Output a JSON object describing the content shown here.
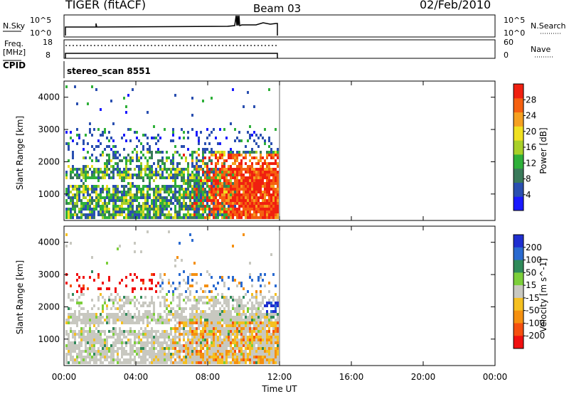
{
  "header": {
    "station": "TIGER (fitACF)",
    "beam": "Beam 03",
    "date": "02/Feb/2010"
  },
  "top_panels": {
    "nsky_label": "N.Sky",
    "nsky_ticks": [
      "10^5",
      "10^0"
    ],
    "nsearch_label": "N.Search",
    "nsearch_ticks": [
      "10^5",
      "10^0"
    ],
    "freq_label": "Freq.",
    "freq_unit": "[MHz]",
    "freq_ticks": [
      "18",
      "8"
    ],
    "nave_label": "Nave",
    "nave_ticks": [
      "60",
      "0"
    ],
    "cpid_label": "CPID",
    "cpid_value": "stereo_scan 8551"
  },
  "chart_data": [
    {
      "type": "heatmap",
      "name": "power-panel",
      "ylabel": "Slant Range [km]",
      "xlabel": "",
      "y_ticks": [
        "1000",
        "2000",
        "3000",
        "4000"
      ],
      "ylim": [
        180,
        4500
      ],
      "xlim": [
        "00:00",
        "24:00"
      ],
      "data_extent_hours": [
        0,
        12
      ],
      "colorbar": {
        "label": "Power [dB]",
        "ticks": [
          "4",
          "8",
          "12",
          "16",
          "20",
          "24",
          "28"
        ],
        "range": [
          0,
          32
        ],
        "colors": [
          "#1a1aff",
          "#2a4fb0",
          "#3a7a5a",
          "#2fb03a",
          "#a8d028",
          "#f0e020",
          "#f5a020",
          "#f56010",
          "#f02010"
        ]
      },
      "features": [
        {
          "time_hours": [
            0,
            12
          ],
          "range_km": [
            300,
            1800
          ],
          "dominant": "green/teal (8-16 dB)"
        },
        {
          "time_hours": [
            6.5,
            12
          ],
          "range_km": [
            300,
            2300
          ],
          "dominant": "orange/red (20-30 dB)"
        },
        {
          "time_hours": [
            0,
            10
          ],
          "range_km": [
            2400,
            3000
          ],
          "dominant": "blue/green (4-12 dB)"
        }
      ]
    },
    {
      "type": "heatmap",
      "name": "velocity-panel",
      "ylabel": "Slant Range [km]",
      "xlabel": "Time UT",
      "x_ticks": [
        "00:00",
        "04:00",
        "08:00",
        "12:00",
        "16:00",
        "20:00",
        "00:00"
      ],
      "y_ticks": [
        "1000",
        "2000",
        "3000",
        "4000"
      ],
      "ylim": [
        180,
        4500
      ],
      "xlim": [
        "00:00",
        "24:00"
      ],
      "data_extent_hours": [
        0,
        12
      ],
      "colorbar": {
        "label": "Velocity [m s^-1]",
        "ticks": [
          "200",
          "100",
          "50",
          "15",
          "-15",
          "-50",
          "-100",
          "-200"
        ],
        "colors": [
          "#1f2fd0",
          "#2a6ad0",
          "#2f8a5a",
          "#7ccf3a",
          "#c8c8c0",
          "#f5c020",
          "#f59010",
          "#f55010",
          "#f01010"
        ]
      },
      "features": [
        {
          "time_hours": [
            0,
            12
          ],
          "range_km": [
            300,
            2200
          ],
          "dominant": "grey (ground scatter)"
        },
        {
          "time_hours": [
            6,
            12
          ],
          "range_km": [
            300,
            1500
          ],
          "dominant": "yellow/orange (-15 to -100 m/s)"
        },
        {
          "time_hours": [
            0,
            5
          ],
          "range_km": [
            2500,
            3000
          ],
          "dominant": "red (< -200 m/s)"
        },
        {
          "time_hours": [
            11,
            12
          ],
          "range_km": [
            1900,
            2200
          ],
          "dominant": "blue (> 200 m/s)"
        }
      ]
    }
  ]
}
